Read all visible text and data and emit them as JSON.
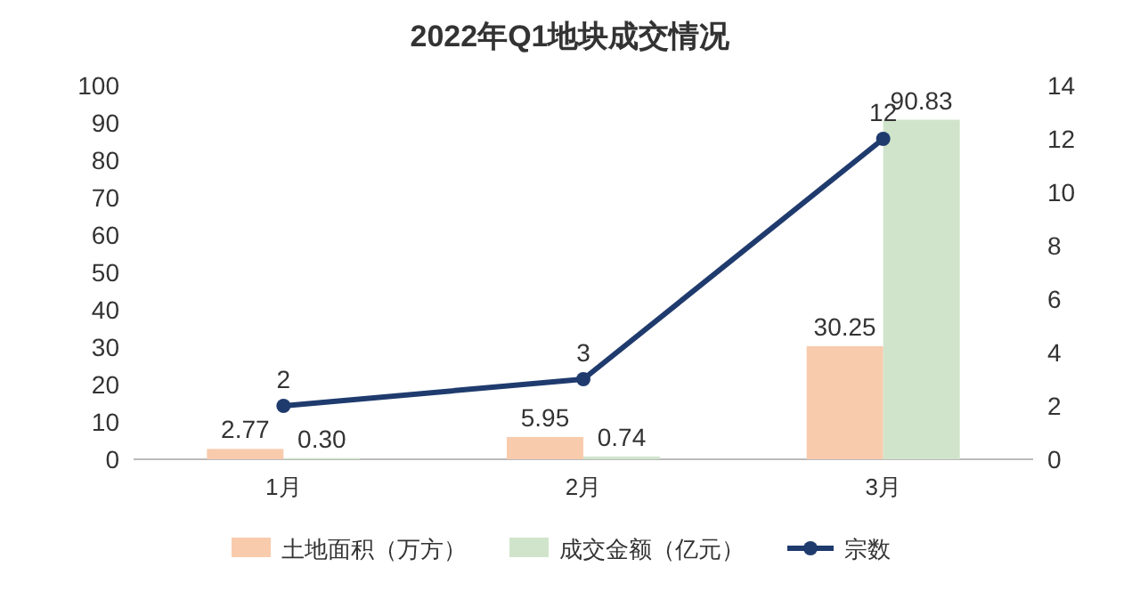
{
  "chart_data": {
    "type": "bar",
    "title": "2022年Q1地块成交情况",
    "categories": [
      "1月",
      "2月",
      "3月"
    ],
    "series": [
      {
        "name": "土地面积（万方）",
        "color": "#f8cbad",
        "values": [
          2.77,
          5.95,
          30.25
        ],
        "value_labels": [
          "2.77",
          "5.95",
          "30.25"
        ]
      },
      {
        "name": "成交金额（亿元）",
        "color": "#d0e4cb",
        "values": [
          0.3,
          0.74,
          90.83
        ],
        "value_labels": [
          "0.30",
          "0.74",
          "90.83"
        ]
      },
      {
        "name": "宗数",
        "type": "line",
        "axis": "y2",
        "color": "#1f3b6e",
        "values": [
          2,
          3,
          12
        ],
        "value_labels": [
          "2",
          "3",
          "12"
        ]
      }
    ],
    "marker": "circle",
    "ylim": [
      0,
      100
    ],
    "yticks": [
      0,
      10,
      20,
      30,
      40,
      50,
      60,
      70,
      80,
      90,
      100
    ],
    "y2lim": [
      0,
      14
    ],
    "y2ticks": [
      0,
      2,
      4,
      6,
      8,
      10,
      12,
      14
    ],
    "legend": "bottom",
    "grid": false
  }
}
